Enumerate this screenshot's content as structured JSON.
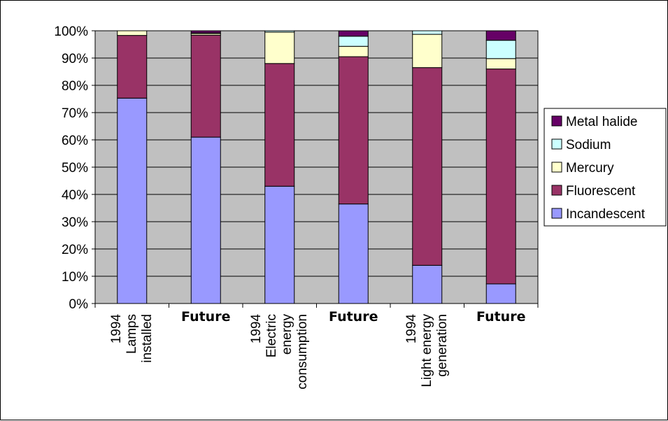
{
  "chart_data": {
    "type": "bar",
    "stacked": true,
    "percent": true,
    "categories": [
      [
        "1994",
        "Lamps",
        "installed"
      ],
      [
        "Future"
      ],
      [
        "1994",
        "Electric",
        "energy",
        "consumption"
      ],
      [
        "Future"
      ],
      [
        "1994",
        "Light energy",
        "generation"
      ],
      [
        "Future"
      ]
    ],
    "series": [
      {
        "name": "Incandescent",
        "color": "#9999ff",
        "values": [
          75.3,
          61.0,
          43.0,
          36.5,
          14.0,
          7.2
        ]
      },
      {
        "name": "Fluorescent",
        "color": "#993366",
        "values": [
          23.0,
          37.4,
          45.0,
          54.0,
          72.5,
          78.8
        ]
      },
      {
        "name": "Mercury",
        "color": "#ffffcc",
        "values": [
          1.7,
          0.6,
          11.5,
          3.8,
          12.2,
          3.8
        ]
      },
      {
        "name": "Sodium",
        "color": "#ccffff",
        "values": [
          0.0,
          0.2,
          0.5,
          3.7,
          1.3,
          6.7
        ]
      },
      {
        "name": "Metal halide",
        "color": "#660066",
        "values": [
          0.0,
          0.8,
          0.0,
          2.0,
          0.0,
          3.5
        ]
      }
    ],
    "y_ticks": [
      "0%",
      "10%",
      "20%",
      "30%",
      "40%",
      "50%",
      "60%",
      "70%",
      "80%",
      "90%",
      "100%"
    ],
    "ylim": [
      0,
      100
    ],
    "grid": true,
    "plot_background": "#c0c0c0",
    "legend_position": "right",
    "legend_order": [
      "Metal halide",
      "Sodium",
      "Mercury",
      "Fluorescent",
      "Incandescent"
    ]
  }
}
